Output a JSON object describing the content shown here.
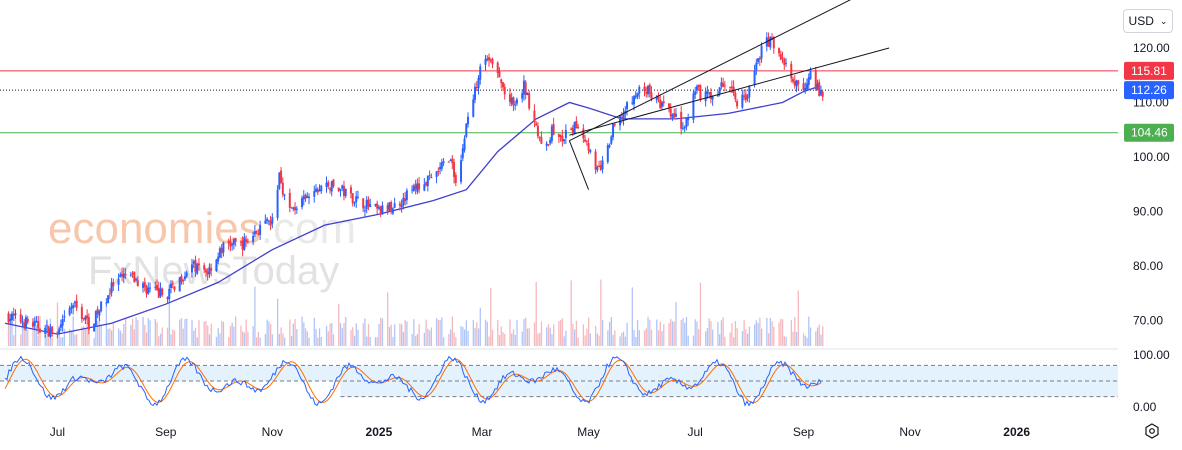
{
  "currency_selector": {
    "label": "USD"
  },
  "watermark": {
    "line1a": "economies",
    "line1b": ".com",
    "line2": "FxNewsToday"
  },
  "colors": {
    "up": "#2962ff",
    "down": "#f23645",
    "ma": "#3f3fd0",
    "resistance": "#f23645",
    "support": "#4caf50",
    "current_bg": "#2962ff",
    "stoch_k": "#2962ff",
    "stoch_d": "#ff6d00",
    "stoch_band": "#e3f2fd",
    "channel": "#131722"
  },
  "icons": {
    "settings": "gear-icon",
    "currency_chevron": "chevron-down-icon"
  },
  "chart_data": [
    {
      "type": "candlestick",
      "title": "",
      "xlabel": "",
      "ylabel": "",
      "ylim": [
        65,
        128
      ],
      "y_ticks": [
        "120.00",
        "110.00",
        "100.00",
        "90.00",
        "80.00",
        "70.00"
      ],
      "x_ticks": [
        "Jul",
        "Sep",
        "Nov",
        "2025",
        "Mar",
        "May",
        "Jul",
        "Sep",
        "Nov",
        "2026"
      ],
      "grid": false,
      "price_levels": [
        {
          "name": "resistance",
          "value": 115.81,
          "label": "115.81"
        },
        {
          "name": "current",
          "value": 112.26,
          "label": "112.26"
        },
        {
          "name": "support",
          "value": 104.46,
          "label": "104.46"
        }
      ],
      "close_path": [
        [
          "2024-06-01",
          71
        ],
        [
          "2024-06-15",
          69.5
        ],
        [
          "2024-07-01",
          67.5
        ],
        [
          "2024-07-10",
          73
        ],
        [
          "2024-07-20",
          69
        ],
        [
          "2024-08-01",
          76
        ],
        [
          "2024-08-10",
          78.5
        ],
        [
          "2024-08-20",
          76
        ],
        [
          "2024-09-01",
          74.5
        ],
        [
          "2024-09-15",
          80
        ],
        [
          "2024-09-25",
          79
        ],
        [
          "2024-10-05",
          84
        ],
        [
          "2024-10-15",
          84
        ],
        [
          "2024-10-25",
          87
        ],
        [
          "2024-11-01",
          88
        ],
        [
          "2024-11-05",
          97
        ],
        [
          "2024-11-10",
          90
        ],
        [
          "2024-11-20",
          92
        ],
        [
          "2024-12-01",
          95
        ],
        [
          "2024-12-10",
          94
        ],
        [
          "2024-12-20",
          92
        ],
        [
          "2025-01-01",
          90
        ],
        [
          "2025-01-10",
          91
        ],
        [
          "2025-01-20",
          94
        ],
        [
          "2025-02-01",
          96
        ],
        [
          "2025-02-10",
          100
        ],
        [
          "2025-02-15",
          95
        ],
        [
          "2025-02-20",
          106
        ],
        [
          "2025-02-25",
          112
        ],
        [
          "2025-03-01",
          119
        ],
        [
          "2025-03-05",
          118
        ],
        [
          "2025-03-10",
          115
        ],
        [
          "2025-03-15",
          111
        ],
        [
          "2025-03-20",
          109
        ],
        [
          "2025-03-25",
          113
        ],
        [
          "2025-04-01",
          106
        ],
        [
          "2025-04-05",
          100
        ],
        [
          "2025-04-10",
          105
        ],
        [
          "2025-04-15",
          103
        ],
        [
          "2025-04-25",
          106
        ],
        [
          "2025-05-01",
          102
        ],
        [
          "2025-05-05",
          97
        ],
        [
          "2025-05-10",
          99
        ],
        [
          "2025-05-15",
          105
        ],
        [
          "2025-05-25",
          110
        ],
        [
          "2025-06-01",
          113
        ],
        [
          "2025-06-10",
          110
        ],
        [
          "2025-06-20",
          107
        ],
        [
          "2025-06-25",
          105
        ],
        [
          "2025-07-01",
          112
        ],
        [
          "2025-07-10",
          111
        ],
        [
          "2025-07-20",
          114
        ],
        [
          "2025-07-25",
          110
        ],
        [
          "2025-08-01",
          112
        ],
        [
          "2025-08-05",
          117
        ],
        [
          "2025-08-10",
          121.5
        ],
        [
          "2025-08-15",
          121
        ],
        [
          "2025-08-20",
          118
        ],
        [
          "2025-08-25",
          114
        ],
        [
          "2025-09-01",
          112
        ],
        [
          "2025-09-05",
          116.5
        ],
        [
          "2025-09-10",
          111.5
        ]
      ],
      "moving_average": [
        [
          "2024-06-01",
          69.5
        ],
        [
          "2024-07-01",
          67.5
        ],
        [
          "2024-08-01",
          69.5
        ],
        [
          "2024-09-01",
          73
        ],
        [
          "2024-10-01",
          77
        ],
        [
          "2024-11-01",
          83
        ],
        [
          "2024-12-01",
          87.5
        ],
        [
          "2025-01-01",
          89.5
        ],
        [
          "2025-02-01",
          92
        ],
        [
          "2025-02-20",
          94
        ],
        [
          "2025-03-10",
          101
        ],
        [
          "2025-04-01",
          107
        ],
        [
          "2025-04-20",
          110
        ],
        [
          "2025-05-01",
          109
        ],
        [
          "2025-05-20",
          107
        ],
        [
          "2025-06-20",
          107
        ],
        [
          "2025-07-20",
          108
        ],
        [
          "2025-08-20",
          110
        ],
        [
          "2025-09-01",
          112
        ],
        [
          "2025-09-10",
          113
        ]
      ],
      "trend_channel": {
        "lower": [
          [
            "2025-04-20",
            104
          ],
          [
            "2025-10-20",
            120
          ]
        ],
        "upper": [
          [
            "2025-04-20",
            103
          ],
          [
            "2025-10-05",
            130
          ]
        ],
        "left_anchor": [
          "2025-05-01",
          94
        ]
      },
      "volume_note": "volume bars shown at base of price pane"
    },
    {
      "type": "line",
      "name": "stochastic",
      "title": "",
      "ylim": [
        0,
        100
      ],
      "y_ticks": [
        "100.00",
        "0.00"
      ],
      "bands": [
        20,
        50,
        80
      ]
    }
  ]
}
